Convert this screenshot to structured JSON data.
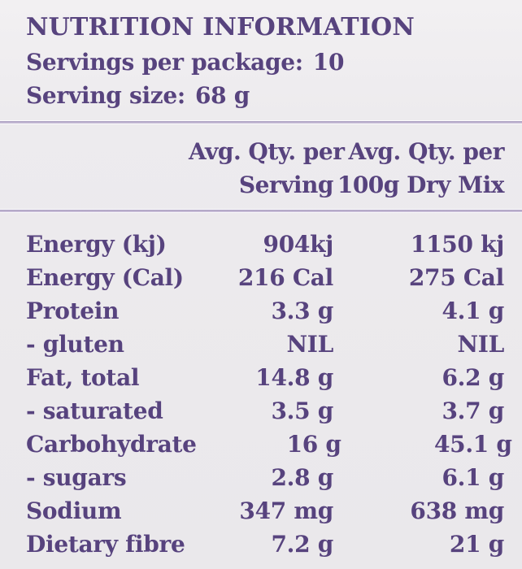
{
  "colors": {
    "text_purple": "#57437e",
    "background": "#ebe9ec",
    "divider": "#b3a8c6"
  },
  "header": {
    "title": "NUTRITION INFORMATION",
    "servings_label": "Servings per package:",
    "servings_value": "10",
    "serving_size_label": "Serving size:",
    "serving_size_value": "68 g"
  },
  "table": {
    "columns": [
      {
        "line1": "Avg. Qty. per",
        "line2": "Serving"
      },
      {
        "line1": "Avg. Qty. per",
        "line2": "100g Dry Mix"
      }
    ],
    "rows": [
      {
        "label": "Energy (kj)",
        "per_serving": "904kj",
        "per_100g": "1150 kj"
      },
      {
        "label": "Energy (Cal)",
        "per_serving": "216 Cal",
        "per_100g": "275 Cal"
      },
      {
        "label": "Protein",
        "per_serving": "3.3 g",
        "per_100g": "4.1 g"
      },
      {
        "label": "- gluten",
        "per_serving": "NIL",
        "per_100g": "NIL"
      },
      {
        "label": "Fat, total",
        "per_serving": "14.8 g",
        "per_100g": "6.2 g"
      },
      {
        "label": "- saturated",
        "per_serving": "3.5 g",
        "per_100g": "3.7 g"
      },
      {
        "label": "Carbohydrate",
        "per_serving": "16 g",
        "per_100g": "45.1 g"
      },
      {
        "label": "- sugars",
        "per_serving": "2.8 g",
        "per_100g": "6.1 g"
      },
      {
        "label": "Sodium",
        "per_serving": "347 mg",
        "per_100g": "638 mg"
      },
      {
        "label": "Dietary fibre",
        "per_serving": "7.2 g",
        "per_100g": "21 g"
      }
    ]
  }
}
